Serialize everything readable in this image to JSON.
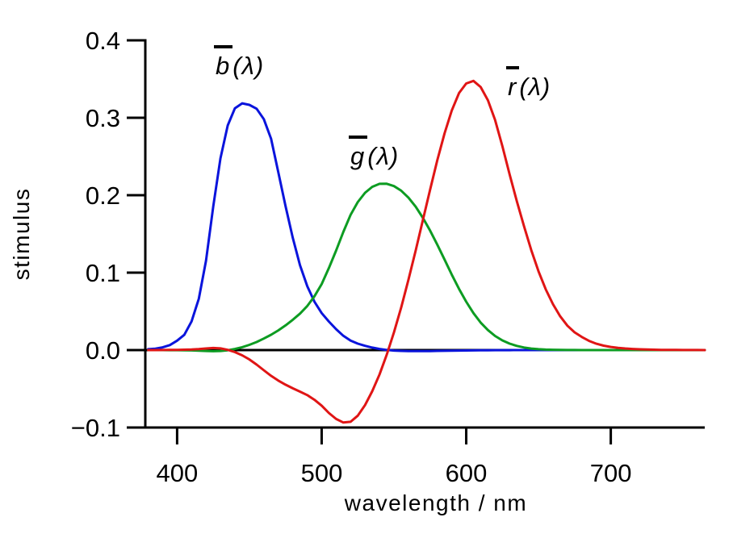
{
  "chart_data": {
    "type": "line",
    "title": "",
    "xlabel": "wavelength / nm",
    "ylabel": "stimulus",
    "xlim": [
      378,
      765
    ],
    "ylim": [
      -0.1,
      0.4
    ],
    "x_ticks": [
      400,
      500,
      600,
      700
    ],
    "y_ticks": [
      -0.1,
      0.0,
      0.1,
      0.2,
      0.3,
      0.4
    ],
    "y_tick_labels": [
      "−0.1",
      "0.0",
      "0.1",
      "0.2",
      "0.3",
      "0.4"
    ],
    "grid": false,
    "legend_position": "inline-annotations",
    "zero_line": true,
    "axis_color": "#000000",
    "x": [
      380,
      385,
      390,
      395,
      400,
      405,
      410,
      415,
      420,
      425,
      430,
      435,
      440,
      445,
      450,
      455,
      460,
      465,
      470,
      475,
      480,
      485,
      490,
      495,
      500,
      505,
      510,
      515,
      520,
      525,
      530,
      535,
      540,
      545,
      550,
      555,
      560,
      565,
      570,
      575,
      580,
      585,
      590,
      595,
      600,
      605,
      610,
      615,
      620,
      625,
      630,
      635,
      640,
      645,
      650,
      655,
      660,
      665,
      670,
      675,
      680,
      685,
      690,
      695,
      700,
      705,
      710,
      715,
      720,
      725,
      730,
      735,
      740,
      745,
      750,
      755,
      760,
      765
    ],
    "series": [
      {
        "name": "b̄(λ)",
        "color": "#0a14dc",
        "values": [
          0.00117,
          0.00189,
          0.00359,
          0.00647,
          0.01214,
          0.01969,
          0.03707,
          0.06637,
          0.11541,
          0.18575,
          0.24769,
          0.29012,
          0.31228,
          0.3186,
          0.3167,
          0.31166,
          0.29821,
          0.27295,
          0.22991,
          0.18592,
          0.14494,
          0.10968,
          0.08257,
          0.06246,
          0.04776,
          0.03688,
          0.02698,
          0.01842,
          0.01221,
          0.0083,
          0.00549,
          0.0032,
          0.00146,
          0.00023,
          -0.00058,
          -0.00105,
          -0.0013,
          -0.00138,
          -0.00135,
          -0.00123,
          -0.00108,
          -0.00093,
          -0.00079,
          -0.00063,
          -0.00049,
          -0.00038,
          -0.0003,
          -0.00022,
          -0.00015,
          -0.00011,
          -8e-05,
          -5e-05,
          -3e-05,
          -2e-05,
          -1e-05,
          -1e-05,
          0,
          0,
          0,
          0,
          0,
          0,
          0,
          0,
          0,
          0,
          0,
          0,
          0,
          0,
          0,
          0,
          0,
          0,
          0,
          0,
          0,
          0
        ]
      },
      {
        "name": "ḡ(λ)",
        "color": "#0d9c22",
        "values": [
          -1e-05,
          -2e-05,
          -4e-05,
          -7e-05,
          -0.00014,
          -0.00022,
          -0.00041,
          -0.0007,
          -0.0011,
          -0.00143,
          -0.00119,
          -0.00021,
          0.00149,
          0.00379,
          0.00678,
          0.01046,
          0.01485,
          0.01977,
          0.02538,
          0.03183,
          0.03914,
          0.04713,
          0.05689,
          0.06948,
          0.08536,
          0.10593,
          0.1286,
          0.15262,
          0.17468,
          0.19113,
          0.20317,
          0.21083,
          0.21466,
          0.21478,
          0.21178,
          0.20588,
          0.19702,
          0.18522,
          0.17087,
          0.15429,
          0.1361,
          0.11686,
          0.09754,
          0.07909,
          0.06246,
          0.04776,
          0.03557,
          0.02583,
          0.01828,
          0.01253,
          0.00833,
          0.00537,
          0.00334,
          0.00199,
          0.00116,
          0.00066,
          0.00037,
          0.00021,
          0.00011,
          6e-05,
          3e-05,
          1e-05,
          0,
          0,
          0,
          0,
          0,
          0,
          0,
          0,
          0,
          0,
          0,
          0,
          0,
          0,
          0,
          0
        ]
      },
      {
        "name": "r̄(λ)",
        "color": "#e01515",
        "values": [
          3e-05,
          5e-05,
          0.0001,
          0.00017,
          0.0003,
          0.00047,
          0.00084,
          0.00139,
          0.00211,
          0.00266,
          0.00218,
          0.00036,
          -0.00261,
          -0.00673,
          -0.01213,
          -0.01874,
          -0.02608,
          -0.03324,
          -0.03933,
          -0.04471,
          -0.04939,
          -0.05364,
          -0.05814,
          -0.06414,
          -0.07173,
          -0.0812,
          -0.08901,
          -0.09356,
          -0.09264,
          -0.08473,
          -0.07101,
          -0.05316,
          -0.03152,
          -0.00613,
          0.02279,
          0.05514,
          0.0906,
          0.1284,
          0.16768,
          0.20715,
          0.24526,
          0.27989,
          0.30928,
          0.33184,
          0.34429,
          0.34756,
          0.33971,
          0.32265,
          0.29708,
          0.26348,
          0.22677,
          0.19233,
          0.15968,
          0.12905,
          0.10167,
          0.07857,
          0.05932,
          0.04366,
          0.03149,
          0.02294,
          0.01687,
          0.01187,
          0.00819,
          0.00572,
          0.0041,
          0.00291,
          0.0021,
          0.00148,
          0.00105,
          0.00074,
          0.00052,
          0.00036,
          0.00025,
          0.00017,
          0.00012,
          8e-05,
          6e-05,
          4e-05
        ]
      }
    ],
    "annotations": {
      "b": {
        "letter": "b",
        "suffix": "(λ)"
      },
      "g": {
        "letter": "g",
        "suffix": "(λ)"
      },
      "r": {
        "letter": "r",
        "suffix": "(λ)"
      }
    }
  }
}
